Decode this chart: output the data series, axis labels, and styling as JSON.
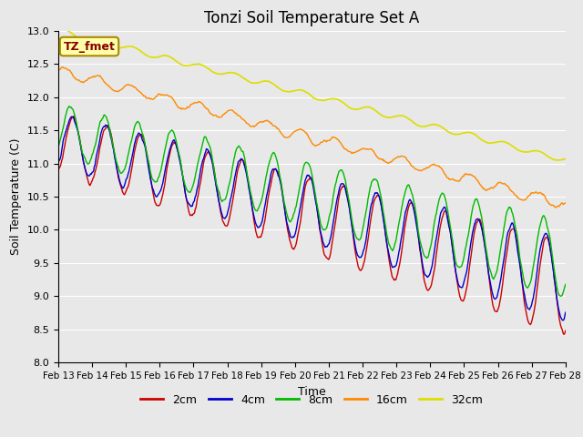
{
  "title": "Tonzi Soil Temperature Set A",
  "xlabel": "Time",
  "ylabel": "Soil Temperature (C)",
  "ylim": [
    8.0,
    13.0
  ],
  "legend_labels": [
    "2cm",
    "4cm",
    "8cm",
    "16cm",
    "32cm"
  ],
  "legend_colors": [
    "#cc0000",
    "#0000cc",
    "#00bb00",
    "#ff8800",
    "#dddd00"
  ],
  "line_widths": [
    1.0,
    1.0,
    1.0,
    1.0,
    1.2
  ],
  "annotation_text": "TZ_fmet",
  "annotation_bg": "#ffffaa",
  "annotation_border": "#aa8800",
  "annotation_text_color": "#880000",
  "bg_color": "#e8e8e8",
  "plot_bg_color": "#e8e8e8",
  "n_points": 720,
  "grid_color": "#ffffff",
  "title_fontsize": 12,
  "xtick_days": [
    13,
    14,
    15,
    16,
    17,
    18,
    19,
    20,
    21,
    22,
    23,
    24,
    25,
    26,
    27,
    28
  ]
}
